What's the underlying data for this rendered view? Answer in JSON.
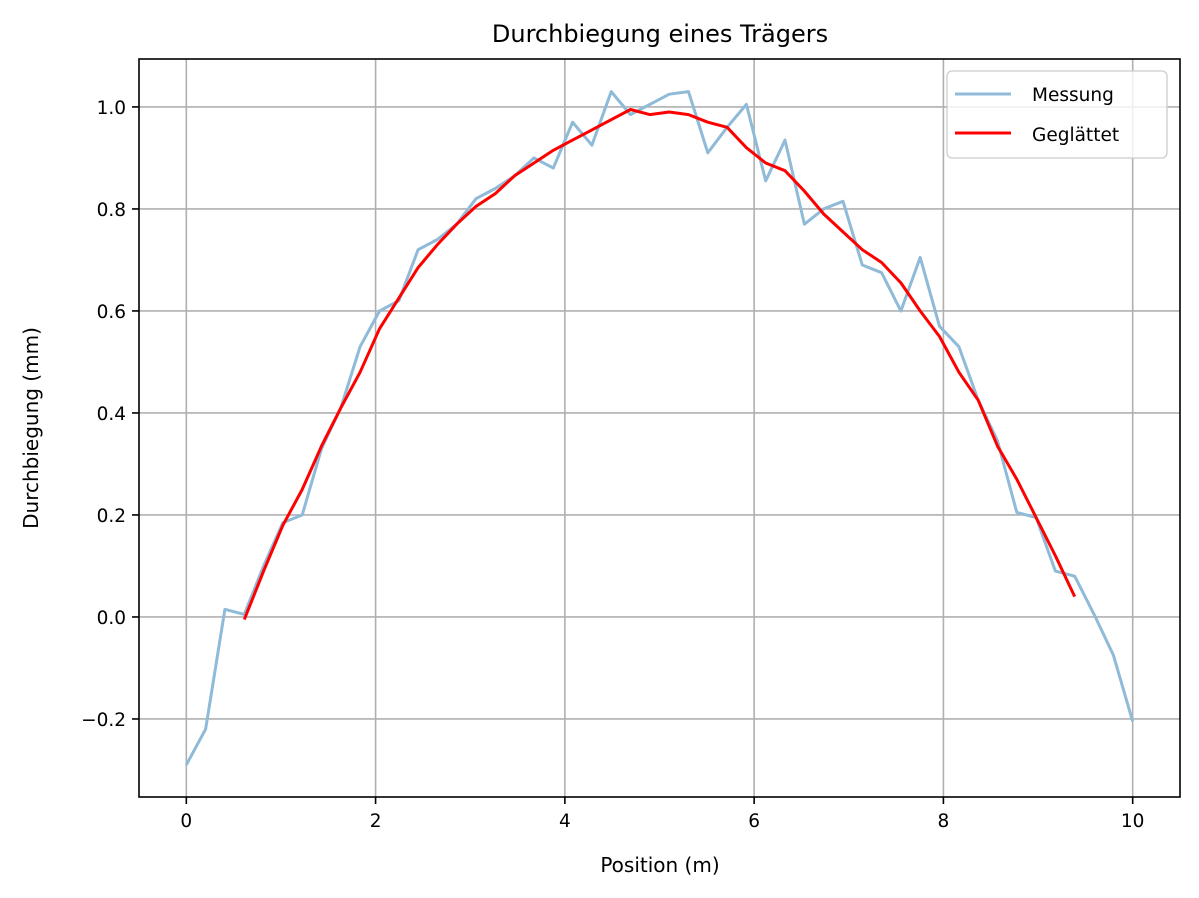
{
  "chart_data": {
    "type": "line",
    "title": "Durchbiegung eines Trägers",
    "xlabel": "Position (m)",
    "ylabel": "Durchbiegung (mm)",
    "xlim": [
      -0.5,
      10.5
    ],
    "ylim": [
      -0.353,
      1.094
    ],
    "xticks": [
      0,
      2,
      4,
      6,
      8,
      10
    ],
    "xtick_labels": [
      "0",
      "2",
      "4",
      "6",
      "8",
      "10"
    ],
    "yticks": [
      -0.2,
      0.0,
      0.2,
      0.4,
      0.6,
      0.8,
      1.0
    ],
    "ytick_labels": [
      "−0.2",
      "0.0",
      "0.2",
      "0.4",
      "0.6",
      "0.8",
      "1.0"
    ],
    "grid": true,
    "legend_position": "upper right",
    "series": [
      {
        "name": "Messung",
        "color": "#8fbad8",
        "x_start": 0,
        "x_end": 10,
        "n": 50,
        "values": [
          -0.29,
          -0.22,
          0.015,
          0.005,
          0.1,
          0.185,
          0.2,
          0.33,
          0.41,
          0.53,
          0.6,
          0.62,
          0.72,
          0.74,
          0.77,
          0.82,
          0.84,
          0.865,
          0.9,
          0.88,
          0.97,
          0.925,
          1.03,
          0.985,
          1.005,
          1.025,
          1.03,
          0.91,
          0.96,
          1.005,
          0.855,
          0.935,
          0.77,
          0.8,
          0.815,
          0.69,
          0.675,
          0.6,
          0.705,
          0.57,
          0.53,
          0.425,
          0.345,
          0.205,
          0.195,
          0.09,
          0.08,
          0.005,
          -0.075,
          -0.205
        ]
      },
      {
        "name": "Geglättet",
        "color": "#ff0000",
        "index_offset": 3,
        "values": [
          -0.005,
          0.09,
          0.18,
          0.25,
          0.335,
          0.41,
          0.48,
          0.565,
          0.625,
          0.685,
          0.73,
          0.77,
          0.805,
          0.83,
          0.865,
          0.89,
          0.915,
          0.935,
          0.955,
          0.975,
          0.995,
          0.985,
          0.99,
          0.985,
          0.97,
          0.96,
          0.92,
          0.89,
          0.875,
          0.835,
          0.79,
          0.755,
          0.72,
          0.695,
          0.655,
          0.6,
          0.55,
          0.48,
          0.425,
          0.335,
          0.27,
          0.195,
          0.12,
          0.04
        ]
      }
    ]
  }
}
